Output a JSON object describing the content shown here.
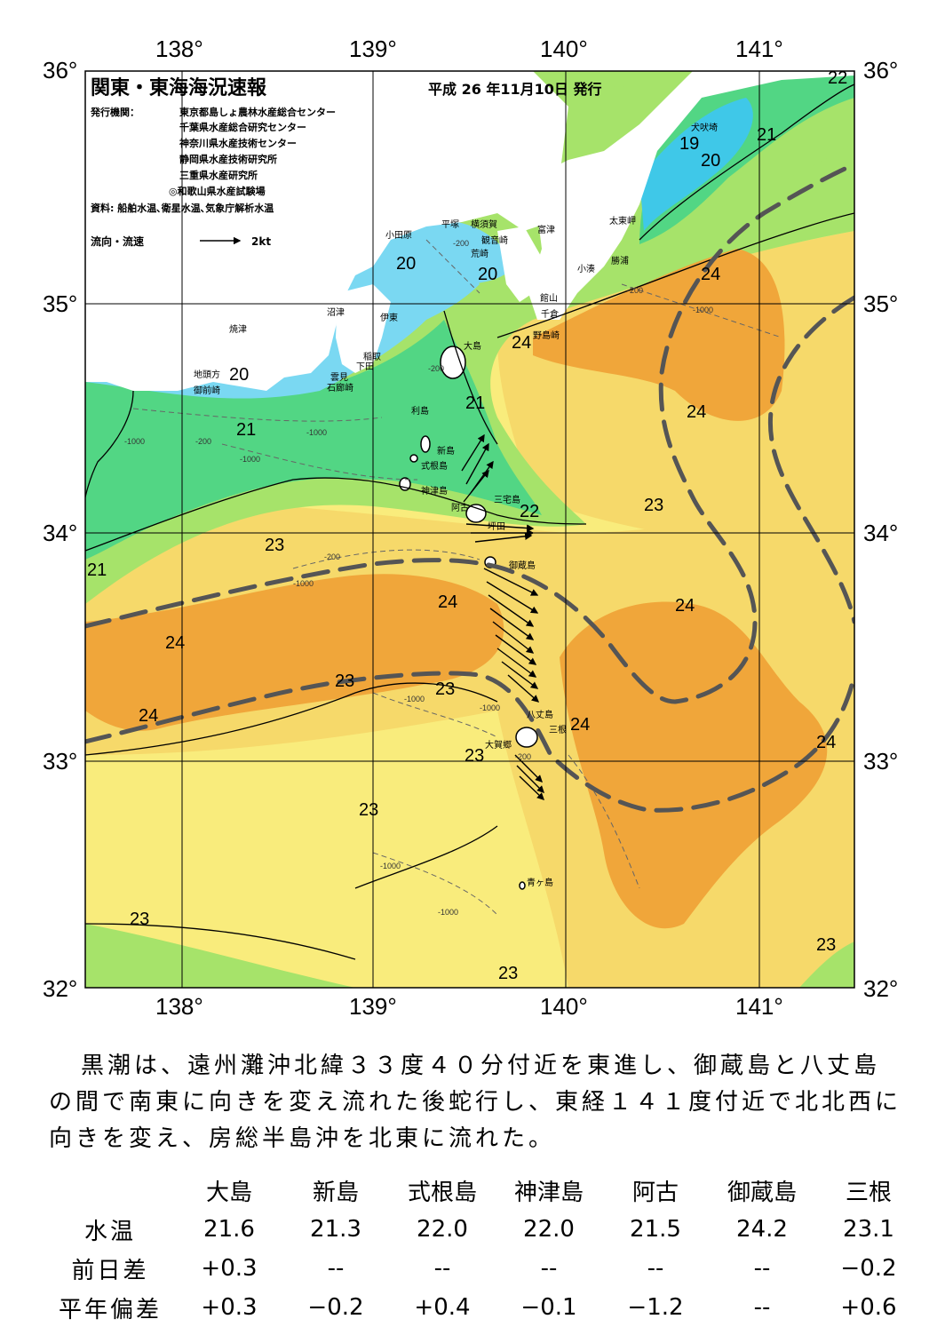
{
  "map": {
    "title": "関東・東海海況速報",
    "issue_date": "平成 26 年11月10日 発行",
    "publisher_label": "発行機関：",
    "publishers": [
      "東京都島しょ農林水産総合センター",
      "千葉県水産総合研究センター",
      "神奈川県水産技術センター",
      "静岡県水産技術研究所",
      "三重県水産研究所",
      "◎和歌山県水産試験場"
    ],
    "sources": "資料: 船舶水温､衛星水温､気象庁解析水温",
    "current_legend": {
      "label": "流向・流速",
      "scale": "2kt"
    },
    "lon_labels": [
      "138°",
      "139°",
      "140°",
      "141°"
    ],
    "lat_labels": [
      "36°",
      "35°",
      "34°",
      "33°",
      "32°"
    ],
    "places": [
      {
        "name": "小田原"
      },
      {
        "name": "平塚"
      },
      {
        "name": "横須賀"
      },
      {
        "name": "観音崎"
      },
      {
        "name": "荒崎"
      },
      {
        "name": "富津"
      },
      {
        "name": "館山"
      },
      {
        "name": "千倉"
      },
      {
        "name": "野島崎"
      },
      {
        "name": "勝浦"
      },
      {
        "name": "小湊"
      },
      {
        "name": "太東岬"
      },
      {
        "name": "犬吠埼"
      },
      {
        "name": "沼津"
      },
      {
        "name": "焼津"
      },
      {
        "name": "伊東"
      },
      {
        "name": "稲取"
      },
      {
        "name": "下田"
      },
      {
        "name": "雲見"
      },
      {
        "name": "石廊崎"
      },
      {
        "name": "地頭方"
      },
      {
        "name": "御前崎"
      },
      {
        "name": "大島"
      },
      {
        "name": "利島"
      },
      {
        "name": "新島"
      },
      {
        "name": "式根島"
      },
      {
        "name": "神津島"
      },
      {
        "name": "三宅島"
      },
      {
        "name": "阿古"
      },
      {
        "name": "坪田"
      },
      {
        "name": "御蔵島"
      },
      {
        "name": "八丈島"
      },
      {
        "name": "三根"
      },
      {
        "name": "大賀郷"
      },
      {
        "name": "青ヶ島"
      }
    ],
    "isotherm_labels": [
      "22",
      "21",
      "19",
      "20",
      "20",
      "20",
      "24",
      "24",
      "24",
      "21",
      "21",
      "20",
      "22",
      "23",
      "23",
      "24",
      "24",
      "24",
      "24",
      "23",
      "24",
      "24",
      "23",
      "23",
      "23",
      "23",
      "23",
      "23",
      "21"
    ],
    "depth_labels": [
      "-200",
      "-200",
      "-1000",
      "-1000",
      "-200",
      "-1000",
      "-1000",
      "-200",
      "-1000",
      "-200",
      "-1000",
      "-1000",
      "-1000",
      "-1000",
      "-200"
    ],
    "colors": {
      "t19": "#3fc8e8",
      "t20": "#7ad8f2",
      "t21": "#52d684",
      "t22": "#a6e36a",
      "t23": "#f6d96a",
      "t24": "#f0a63a",
      "t23b": "#f9ec7c",
      "land": "#ffffff",
      "kuroshio_axis": "#555555"
    }
  },
  "description": "黒潮は、遠州灘沖北緯３３度４０分付近を東進し、御蔵島と八丈島の間で南東に向きを変え流れた後蛇行し、東経１４１度付近で北北西に向きを変え、房総半島沖を北東に流れた。",
  "table": {
    "columns": [
      "大島",
      "新島",
      "式根島",
      "神津島",
      "阿古",
      "御蔵島",
      "三根"
    ],
    "rows": [
      {
        "label": "水温",
        "values": [
          "21.6",
          "21.3",
          "22.0",
          "22.0",
          "21.5",
          "24.2",
          "23.1"
        ]
      },
      {
        "label": "前日差",
        "values": [
          "+0.3",
          "--",
          "--",
          "--",
          "--",
          "--",
          "−0.2"
        ]
      },
      {
        "label": "平年偏差",
        "values": [
          "+0.3",
          "−0.2",
          "+0.4",
          "−0.1",
          "−1.2",
          "--",
          "+0.6"
        ]
      }
    ]
  }
}
